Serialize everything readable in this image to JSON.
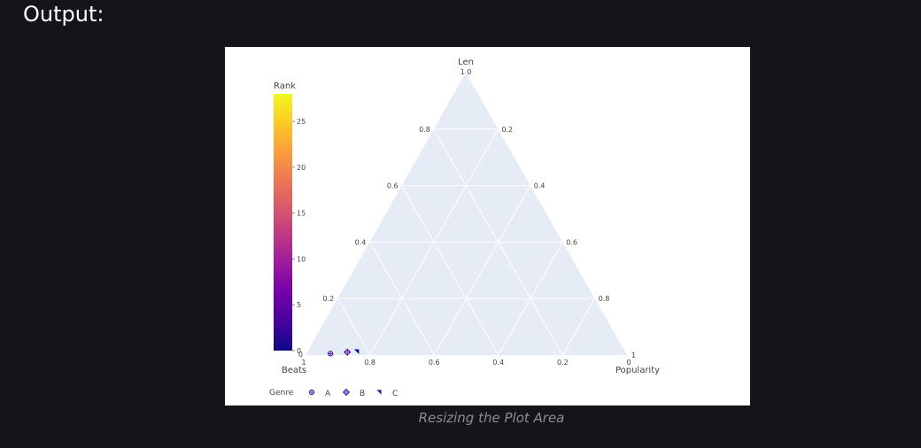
{
  "heading": "Output:",
  "caption": "Resizing the Plot Area",
  "chart_data": {
    "type": "scatter",
    "subtype": "ternary",
    "axes": {
      "a": {
        "title": "Len",
        "ticks": [
          "0.2",
          "0.4",
          "0.6",
          "0.8",
          "1"
        ]
      },
      "b": {
        "title": "Beats",
        "ticks": [
          "0.2",
          "0.4",
          "0.6",
          "0.8",
          "1"
        ]
      },
      "c": {
        "title": "Popularity",
        "ticks": [
          "0.2",
          "0.4",
          "0.6",
          "0.8",
          "1"
        ]
      },
      "zero_label": "0"
    },
    "colorbar": {
      "title": "Rank",
      "range": [
        0,
        28
      ],
      "ticks": [
        "0",
        "5",
        "10",
        "15",
        "20",
        "25"
      ],
      "tick_values": [
        0,
        5,
        10,
        15,
        20,
        25
      ],
      "colorscale": [
        "#0d0887",
        "#46039f",
        "#7201a8",
        "#9c179e",
        "#bd3786",
        "#d8576b",
        "#ed7953",
        "#fb9f3a",
        "#fdca26",
        "#f0f921"
      ]
    },
    "legend": {
      "title": "Genre",
      "entries": [
        {
          "name": "A",
          "symbol": "circle-cross"
        },
        {
          "name": "B",
          "symbol": "diamond-cross"
        },
        {
          "name": "C",
          "symbol": "triangle"
        }
      ],
      "placement": "bottom-left"
    },
    "points": [
      {
        "genre": "A",
        "a": 0.005,
        "b": 0.92,
        "c": 0.075,
        "rank": 2
      },
      {
        "genre": "B",
        "a": 0.01,
        "b": 0.865,
        "c": 0.125,
        "rank": 2
      },
      {
        "genre": "C",
        "a": 0.012,
        "b": 0.835,
        "c": 0.153,
        "rank": 1
      }
    ],
    "colors": {
      "plot_bg": "#e5ecf6",
      "grid": "#ffffff",
      "marker": "#2a1bb0"
    }
  }
}
